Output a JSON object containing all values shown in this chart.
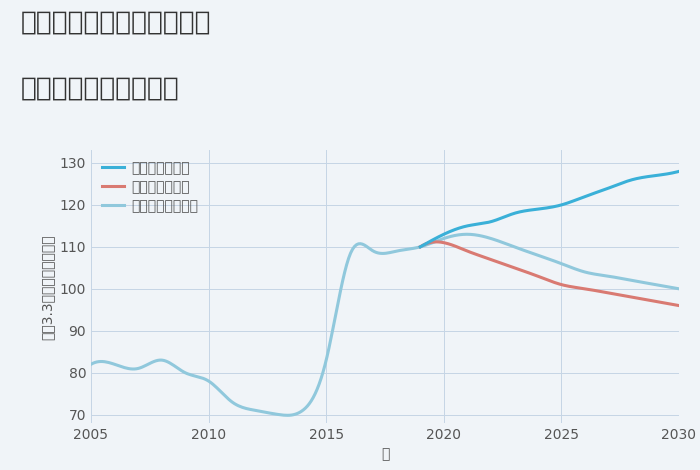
{
  "title_line1": "大阪府大阪市北区菅原町の",
  "title_line2": "中古戸建ての価格推移",
  "xlabel": "年",
  "ylabel": "坪（3.3㎡）単価（万円）",
  "xlim": [
    2005,
    2030
  ],
  "ylim": [
    68,
    133
  ],
  "yticks": [
    70,
    80,
    90,
    100,
    110,
    120,
    130
  ],
  "xticks": [
    2005,
    2010,
    2015,
    2020,
    2025,
    2030
  ],
  "background_color": "#f0f4f8",
  "plot_background": "#f0f4f8",
  "grid_color": "#c5d5e5",
  "legend_labels": [
    "グッドシナリオ",
    "バッドシナリオ",
    "ノーマルシナリオ"
  ],
  "good_color": "#3ab0d8",
  "bad_color": "#d97a72",
  "normal_color": "#90c8dc",
  "normal_data": {
    "x": [
      2005,
      2006,
      2007,
      2008,
      2009,
      2010,
      2011,
      2012,
      2013,
      2014,
      2015,
      2016,
      2017,
      2018,
      2019,
      2020,
      2021,
      2022,
      2023,
      2024,
      2025,
      2026,
      2027,
      2028,
      2029,
      2030
    ],
    "y": [
      82,
      82,
      81,
      83,
      80,
      78,
      73,
      71,
      70,
      71,
      83,
      108,
      109,
      109,
      110,
      112,
      113,
      112,
      110,
      108,
      106,
      104,
      103,
      102,
      101,
      100
    ]
  },
  "good_data": {
    "x": [
      2019,
      2020,
      2021,
      2022,
      2023,
      2024,
      2025,
      2026,
      2027,
      2028,
      2029,
      2030
    ],
    "y": [
      110,
      113,
      115,
      116,
      118,
      119,
      120,
      122,
      124,
      126,
      127,
      128
    ]
  },
  "bad_data": {
    "x": [
      2019,
      2020,
      2021,
      2022,
      2023,
      2024,
      2025,
      2026,
      2027,
      2028,
      2029,
      2030
    ],
    "y": [
      110,
      111,
      109,
      107,
      105,
      103,
      101,
      100,
      99,
      98,
      97,
      96
    ]
  },
  "title_fontsize": 19,
  "axis_fontsize": 10,
  "tick_fontsize": 10,
  "legend_fontsize": 10,
  "line_width": 2.2
}
